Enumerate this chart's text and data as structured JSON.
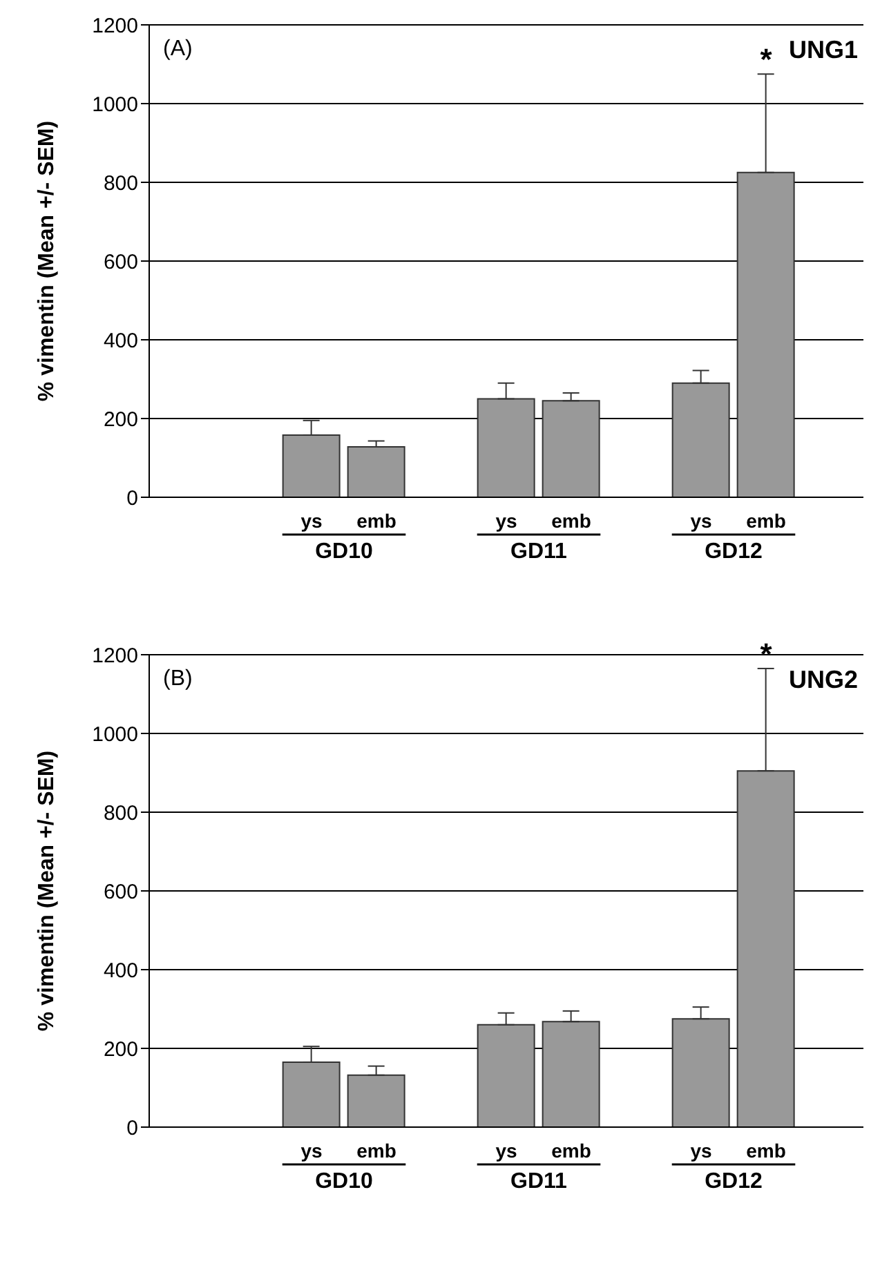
{
  "chart_data": [
    {
      "type": "bar",
      "ylabel": "% vimentin (Mean +/- SEM)",
      "categories": [
        null,
        null,
        "ys",
        "emb",
        null,
        "ys",
        "emb",
        null,
        "ys",
        "emb",
        null
      ],
      "series": [
        {
          "color": "#999999",
          "values": [
            null,
            null,
            158,
            128,
            null,
            250,
            245,
            null,
            290,
            825,
            null
          ],
          "errors": [
            null,
            null,
            [
              158,
              195
            ],
            [
              128,
              143
            ],
            null,
            [
              250,
              290
            ],
            [
              245,
              265
            ],
            null,
            [
              290,
              322
            ],
            [
              825,
              1075
            ],
            null
          ]
        }
      ],
      "ylim": [
        0,
        1200
      ],
      "yticks": [
        0,
        200,
        400,
        600,
        800,
        1000,
        1200
      ],
      "grid": "y",
      "legend": false,
      "annotations": [
        "(A)",
        "UNG1",
        "*",
        "GD10",
        "GD11",
        "GD12"
      ]
    },
    {
      "type": "bar",
      "ylabel": "% vimentin (Mean +/- SEM)",
      "categories": [
        null,
        null,
        "ys",
        "emb",
        null,
        "ys",
        "emb",
        null,
        "ys",
        "emb",
        null
      ],
      "series": [
        {
          "color": "#999999",
          "values": [
            null,
            null,
            165,
            132,
            null,
            260,
            268,
            null,
            275,
            905,
            null
          ],
          "errors": [
            null,
            null,
            [
              165,
              205
            ],
            [
              132,
              155
            ],
            null,
            [
              260,
              290
            ],
            [
              268,
              295
            ],
            null,
            [
              275,
              305
            ],
            [
              905,
              1165
            ],
            null
          ]
        }
      ],
      "ylim": [
        0,
        1200
      ],
      "yticks": [
        0,
        200,
        400,
        600,
        800,
        1000,
        1200
      ],
      "grid": "y",
      "legend": false,
      "annotations": [
        "(B)",
        "UNG2",
        "*",
        "GD10",
        "GD11",
        "GD12"
      ]
    }
  ]
}
